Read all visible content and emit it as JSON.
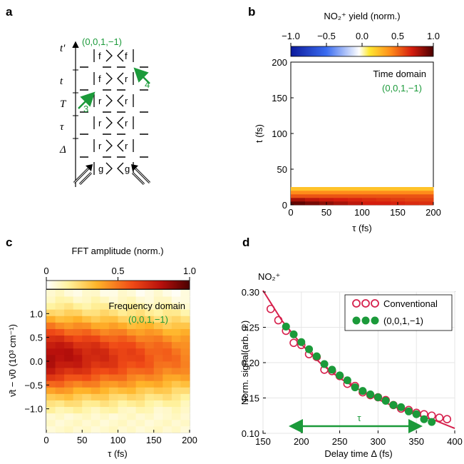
{
  "panels": {
    "a": {
      "label": "a",
      "top_label": "(0,0,1,−1)",
      "axis_label": "t'",
      "intervals": [
        "t",
        "T",
        "τ",
        "Δ"
      ],
      "rows": [
        {
          "left": "f",
          "right": "f"
        },
        {
          "left": "f",
          "right": "r"
        },
        {
          "left": "r",
          "right": "r"
        },
        {
          "left": "r",
          "right": "r"
        },
        {
          "left": "r",
          "right": "r"
        },
        {
          "left": "g",
          "right": "g"
        }
      ],
      "arrow_labels": [
        "3",
        "4"
      ]
    },
    "b": {
      "label": "b",
      "colorbar_title": "NO₂⁺ yield (norm.)"
    },
    "c": {
      "label": "c",
      "colorbar_title": "FFT amplitude (norm.)"
    },
    "d": {
      "label": "d",
      "species": "NO₂⁺",
      "tau_label": "τ"
    }
  },
  "chart_data": [
    {
      "id": "b",
      "type": "heatmap",
      "title": "Time domain",
      "annotation": "(0,0,1,−1)",
      "xlabel": "τ (fs)",
      "ylabel": "t (fs)",
      "xlim": [
        0,
        200
      ],
      "ylim": [
        0,
        200
      ],
      "xticks": [
        "0",
        "50",
        "100",
        "150",
        "200"
      ],
      "yticks": [
        "0",
        "50",
        "100",
        "150",
        "200"
      ],
      "colorbar": {
        "min": -1.0,
        "max": 1.0,
        "ticks": [
          "−1.0",
          "−0.5",
          "0.0",
          "0.5",
          "1.0"
        ]
      },
      "bands": [
        {
          "t_from": 0,
          "t_to": 5,
          "values": [
            0.95,
            0.9,
            0.85,
            0.8,
            0.75,
            0.7,
            0.7,
            0.68,
            0.66,
            0.65
          ]
        },
        {
          "t_from": 5,
          "t_to": 10,
          "values": [
            0.8,
            0.75,
            0.72,
            0.7,
            0.68,
            0.66,
            0.64,
            0.62,
            0.6,
            0.6
          ]
        },
        {
          "t_from": 10,
          "t_to": 15,
          "values": [
            0.55,
            0.55,
            0.55,
            0.55,
            0.55,
            0.55,
            0.55,
            0.55,
            0.55,
            0.55
          ]
        },
        {
          "t_from": 15,
          "t_to": 20,
          "values": [
            0.4,
            0.4,
            0.4,
            0.4,
            0.4,
            0.4,
            0.4,
            0.4,
            0.4,
            0.4
          ]
        },
        {
          "t_from": 20,
          "t_to": 25,
          "values": [
            0.25,
            0.25,
            0.25,
            0.25,
            0.25,
            0.25,
            0.25,
            0.25,
            0.25,
            0.25
          ]
        }
      ]
    },
    {
      "id": "c",
      "type": "heatmap",
      "title": "Frequency domain",
      "annotation": "(0,0,1,−1)",
      "xlabel": "τ (fs)",
      "ylabel": "ν̄t − ν̄0 (10³ cm⁻¹)",
      "xlim": [
        0,
        200
      ],
      "ylim": [
        -1.5,
        1.5
      ],
      "xticks": [
        "0",
        "50",
        "100",
        "150",
        "200"
      ],
      "yticks": [
        "−1.0",
        "−0.5",
        "0.0",
        "0.5",
        "1.0"
      ],
      "colorbar": {
        "min": 0,
        "max": 1.0,
        "ticks": [
          "0",
          "0.5",
          "1.0"
        ]
      }
    },
    {
      "id": "d",
      "type": "scatter",
      "xlabel": "Delay time Δ (fs)",
      "ylabel": "Norm. signal(arb. u.)",
      "xlim": [
        150,
        400
      ],
      "ylim": [
        0.1,
        0.3
      ],
      "xticks": [
        "150",
        "200",
        "250",
        "300",
        "350",
        "400"
      ],
      "yticks": [
        "0.10",
        "0.15",
        "0.20",
        "0.25",
        "0.30"
      ],
      "series": [
        {
          "name": "Conventional",
          "x": [
            160,
            170,
            180,
            190,
            200,
            210,
            220,
            230,
            240,
            250,
            260,
            270,
            280,
            290,
            300,
            310,
            320,
            330,
            340,
            350,
            360,
            370,
            380,
            390
          ],
          "y": [
            0.276,
            0.26,
            0.245,
            0.228,
            0.225,
            0.212,
            0.208,
            0.19,
            0.188,
            0.181,
            0.17,
            0.167,
            0.158,
            0.154,
            0.151,
            0.147,
            0.14,
            0.135,
            0.133,
            0.129,
            0.127,
            0.125,
            0.122,
            0.12
          ]
        },
        {
          "name": "(0,0,1,−1)",
          "x": [
            180,
            190,
            200,
            210,
            220,
            230,
            240,
            250,
            260,
            270,
            280,
            290,
            300,
            310,
            320,
            330,
            340,
            350,
            360,
            370
          ],
          "y": [
            0.251,
            0.24,
            0.229,
            0.219,
            0.209,
            0.198,
            0.19,
            0.182,
            0.175,
            0.165,
            0.16,
            0.155,
            0.151,
            0.146,
            0.14,
            0.137,
            0.131,
            0.127,
            0.12,
            0.116
          ]
        },
        {
          "name": "fit",
          "x": [
            150,
            175,
            200,
            225,
            250,
            275,
            300,
            325,
            350,
            375,
            400
          ],
          "y": [
            0.302,
            0.259,
            0.226,
            0.199,
            0.178,
            0.162,
            0.148,
            0.136,
            0.126,
            0.118,
            0.107
          ]
        }
      ]
    }
  ]
}
